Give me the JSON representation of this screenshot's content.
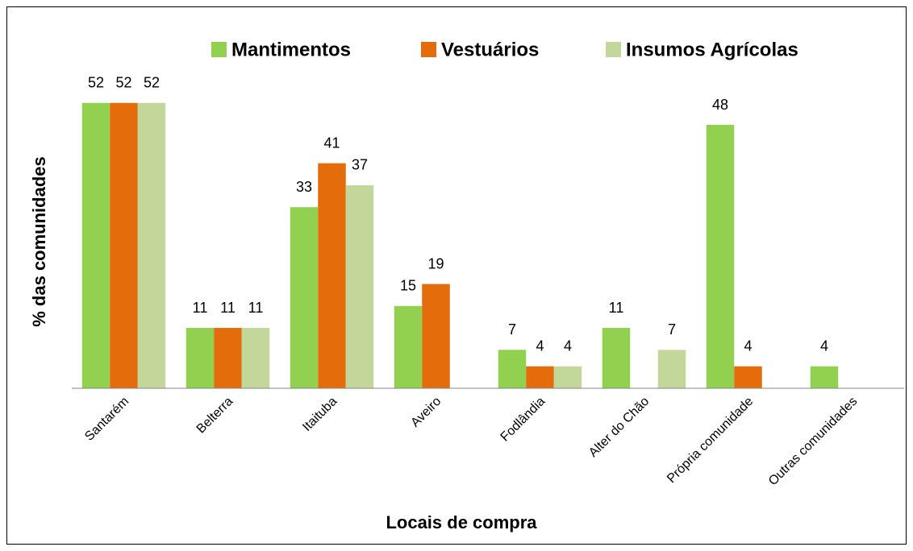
{
  "chart_data": {
    "type": "bar",
    "ylabel": "% das comunidades",
    "xlabel": "Locais de compra",
    "categories": [
      "Santarém",
      "Belterra",
      "Itaituba",
      "Aveiro",
      "Fodlândia",
      "Alter do Chão",
      "Própria comunidade",
      "Outras comunidades"
    ],
    "series": [
      {
        "name": "Mantimentos",
        "color": "#92d050",
        "values": [
          52,
          11,
          33,
          15,
          7,
          11,
          48,
          4
        ]
      },
      {
        "name": "Vestuários",
        "color": "#e46c0a",
        "values": [
          52,
          11,
          41,
          19,
          4,
          null,
          4,
          null
        ]
      },
      {
        "name": "Insumos Agrícolas",
        "color": "#c4d79b",
        "values": [
          52,
          11,
          37,
          null,
          4,
          7,
          null,
          null
        ]
      }
    ],
    "ylim": [
      0,
      56
    ],
    "legend": "top"
  }
}
